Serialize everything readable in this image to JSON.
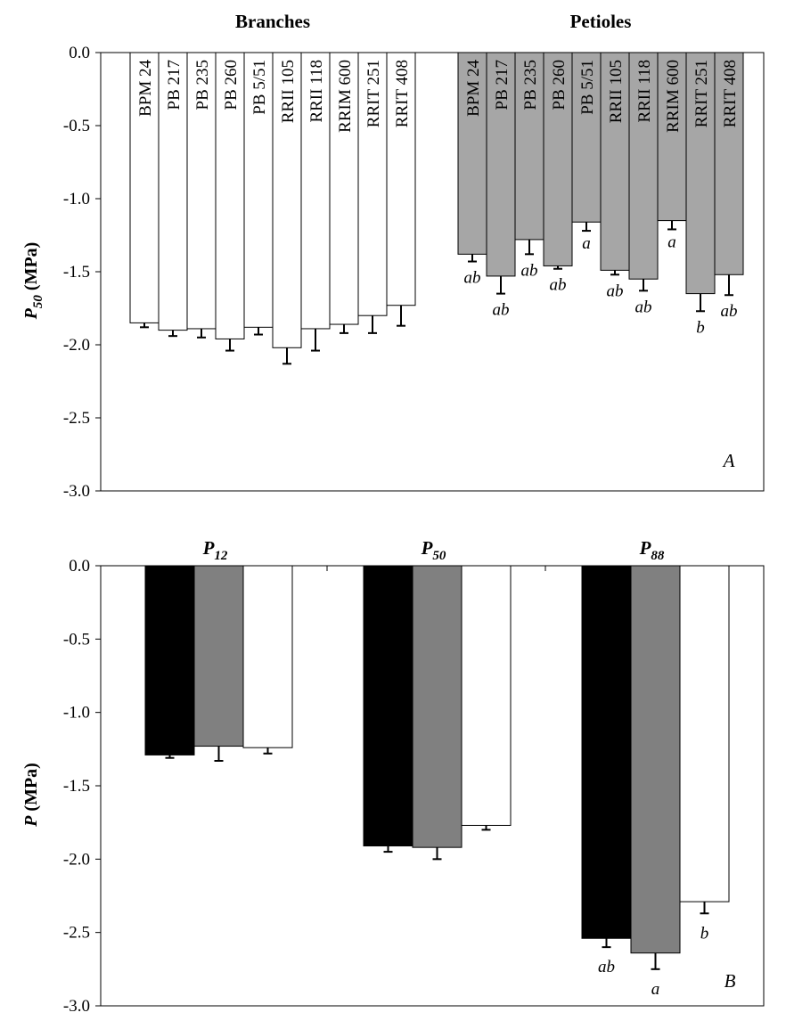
{
  "chart_data": [
    {
      "type": "bar",
      "panel_label": "A",
      "ylabel_symbol": "P",
      "ylabel_sub": "50",
      "ylabel_unit": " (MPa)",
      "ylim": [
        -3.0,
        0.0
      ],
      "yticks": [
        "0.0",
        "-0.5",
        "-1.0",
        "-1.5",
        "-2.0",
        "-2.5",
        "-3.0"
      ],
      "groups": [
        {
          "name": "Branches",
          "color": "#ffffff",
          "categories": [
            "BPM 24",
            "PB 217",
            "PB 235",
            "PB 260",
            "PB 5/51",
            "RRII 105",
            "RRII 118",
            "RRIM 600",
            "RRIT 251",
            "RRIT 408"
          ],
          "values": [
            -1.85,
            -1.9,
            -1.89,
            -1.96,
            -1.88,
            -2.02,
            -1.89,
            -1.86,
            -1.8,
            -1.73
          ],
          "errors": [
            0.03,
            0.04,
            0.06,
            0.08,
            0.05,
            0.11,
            0.15,
            0.06,
            0.12,
            0.14
          ],
          "letters": [
            "",
            "",
            "",
            "",
            "",
            "",
            "",
            "",
            "",
            ""
          ]
        },
        {
          "name": "Petioles",
          "color": "#a6a6a6",
          "categories": [
            "BPM 24",
            "PB 217",
            "PB 235",
            "PB 260",
            "PB 5/51",
            "RRII 105",
            "RRII 118",
            "RRIM 600",
            "RRIT 251",
            "RRIT 408"
          ],
          "values": [
            -1.38,
            -1.53,
            -1.28,
            -1.46,
            -1.16,
            -1.49,
            -1.55,
            -1.15,
            -1.65,
            -1.52
          ],
          "errors": [
            0.05,
            0.12,
            0.1,
            0.02,
            0.06,
            0.03,
            0.08,
            0.06,
            0.12,
            0.14
          ],
          "letters": [
            "ab",
            "ab",
            "ab",
            "ab",
            "a",
            "ab",
            "ab",
            "a",
            "b",
            "ab"
          ]
        }
      ]
    },
    {
      "type": "bar",
      "panel_label": "B",
      "ylabel_symbol": "P",
      "ylabel_sub": "",
      "ylabel_unit": " (MPa)",
      "ylim": [
        -3.0,
        0.0
      ],
      "yticks": [
        "0.0",
        "-0.5",
        "-1.0",
        "-1.5",
        "-2.0",
        "-2.5",
        "-3.0"
      ],
      "categories": [
        {
          "symbol": "P",
          "sub": "12"
        },
        {
          "symbol": "P",
          "sub": "50"
        },
        {
          "symbol": "P",
          "sub": "88"
        }
      ],
      "series_colors": [
        "#000000",
        "#808080",
        "#ffffff"
      ],
      "values": [
        [
          -1.29,
          -1.23,
          -1.24
        ],
        [
          -1.91,
          -1.92,
          -1.77
        ],
        [
          -2.54,
          -2.64,
          -2.29
        ]
      ],
      "errors": [
        [
          0.02,
          0.1,
          0.04
        ],
        [
          0.04,
          0.08,
          0.03
        ],
        [
          0.06,
          0.11,
          0.08
        ]
      ],
      "letters": [
        [
          "",
          "",
          ""
        ],
        [
          "",
          "",
          ""
        ],
        [
          "ab",
          "a",
          "b"
        ]
      ]
    }
  ]
}
